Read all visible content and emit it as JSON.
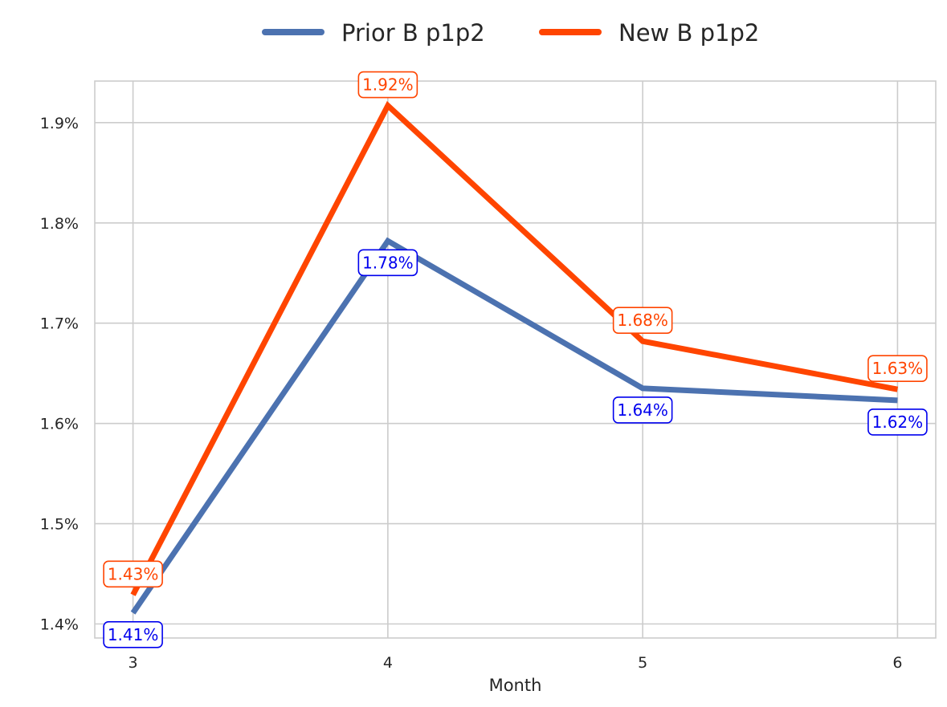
{
  "chart_data": {
    "type": "line",
    "xlabel": "Month",
    "ylabel": "",
    "x": [
      3,
      4,
      5,
      6
    ],
    "xticks": [
      "3",
      "4",
      "5",
      "6"
    ],
    "xlim": [
      2.85,
      6.15
    ],
    "ylim": [
      1.386,
      1.9415
    ],
    "yticks": [
      1.4,
      1.5,
      1.6,
      1.7,
      1.8,
      1.9
    ],
    "ytick_labels": [
      "1.4%",
      "1.5%",
      "1.6%",
      "1.7%",
      "1.8%",
      "1.9%"
    ],
    "grid": true,
    "legend_position": "top-center",
    "series": [
      {
        "name": "Prior B p1p2",
        "color": "#4c72b0",
        "label_color": "#0000ee",
        "label_position": "below",
        "values": [
          1.411,
          1.782,
          1.635,
          1.623
        ],
        "labels": [
          "1.41%",
          "1.78%",
          "1.64%",
          "1.62%"
        ]
      },
      {
        "name": "New B p1p2",
        "color": "#ff4500",
        "label_color": "#ff4500",
        "label_position": "above",
        "values": [
          1.429,
          1.917,
          1.682,
          1.634
        ],
        "labels": [
          "1.43%",
          "1.92%",
          "1.68%",
          "1.63%"
        ]
      }
    ]
  }
}
